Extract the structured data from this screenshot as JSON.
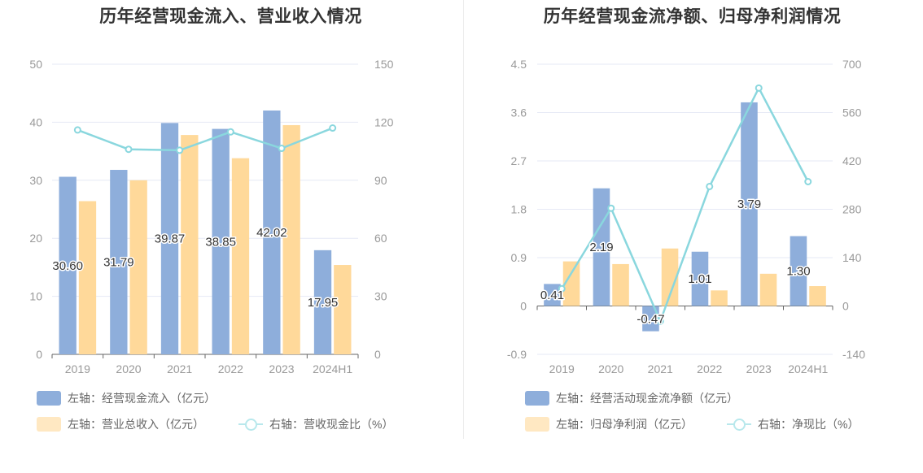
{
  "colors": {
    "bar_primary": "#8eaedb",
    "bar_secondary": "#ffd99a",
    "line": "#8ad7de",
    "axis_text": "#999999",
    "grid": "#e6e9f5",
    "title": "#333333"
  },
  "chart_data": [
    {
      "type": "bar",
      "title": "历年经营现金流入、营业收入情况",
      "categories": [
        "2019",
        "2020",
        "2021",
        "2022",
        "2023",
        "2024H1"
      ],
      "y_left": {
        "ticks": [
          "0",
          "10",
          "20",
          "30",
          "40",
          "50"
        ],
        "ylim": [
          0,
          50
        ]
      },
      "y_right": {
        "ticks": [
          "0",
          "30",
          "60",
          "90",
          "120",
          "150"
        ],
        "ylim": [
          0,
          150
        ]
      },
      "series": [
        {
          "name": "左轴：经营现金流入（亿元）",
          "kind": "bar",
          "axis": "left",
          "values": [
            30.6,
            31.79,
            39.87,
            38.85,
            42.02,
            17.95
          ],
          "labels": [
            "30.60",
            "31.79",
            "39.87",
            "38.85",
            "42.02",
            "17.95"
          ]
        },
        {
          "name": "左轴：营业总收入（亿元）",
          "kind": "bar",
          "axis": "left",
          "values": [
            26.4,
            30.0,
            37.8,
            33.8,
            39.5,
            15.4
          ]
        },
        {
          "name": "右轴：营收现金比（%）",
          "kind": "line",
          "axis": "right",
          "values": [
            116,
            106,
            105.5,
            115,
            106.5,
            117
          ]
        }
      ],
      "grid": true,
      "legend_position": "bottom"
    },
    {
      "type": "bar",
      "title": "历年经营现金流净额、归母净利润情况",
      "categories": [
        "2019",
        "2020",
        "2021",
        "2022",
        "2023",
        "2024H1"
      ],
      "y_left": {
        "ticks": [
          "-0.9",
          "0",
          "0.9",
          "1.8",
          "2.7",
          "3.6",
          "4.5"
        ],
        "ylim": [
          -0.9,
          4.5
        ]
      },
      "y_right": {
        "ticks": [
          "-140",
          "0",
          "140",
          "280",
          "420",
          "560",
          "700"
        ],
        "ylim": [
          -140,
          700
        ]
      },
      "series": [
        {
          "name": "左轴：经营活动现金流净额（亿元）",
          "kind": "bar",
          "axis": "left",
          "values": [
            0.41,
            2.19,
            -0.47,
            1.01,
            3.79,
            1.3
          ],
          "labels": [
            "0.41",
            "2.19",
            "-0.47",
            "1.01",
            "3.79",
            "1.30"
          ]
        },
        {
          "name": "左轴：归母净利润（亿元）",
          "kind": "bar",
          "axis": "left",
          "values": [
            0.83,
            0.78,
            1.07,
            0.29,
            0.6,
            0.37
          ]
        },
        {
          "name": "右轴：净现比（%）",
          "kind": "line",
          "axis": "right",
          "values": [
            50,
            283,
            -44,
            346,
            631,
            360
          ]
        }
      ],
      "grid": true,
      "legend_position": "bottom"
    }
  ]
}
